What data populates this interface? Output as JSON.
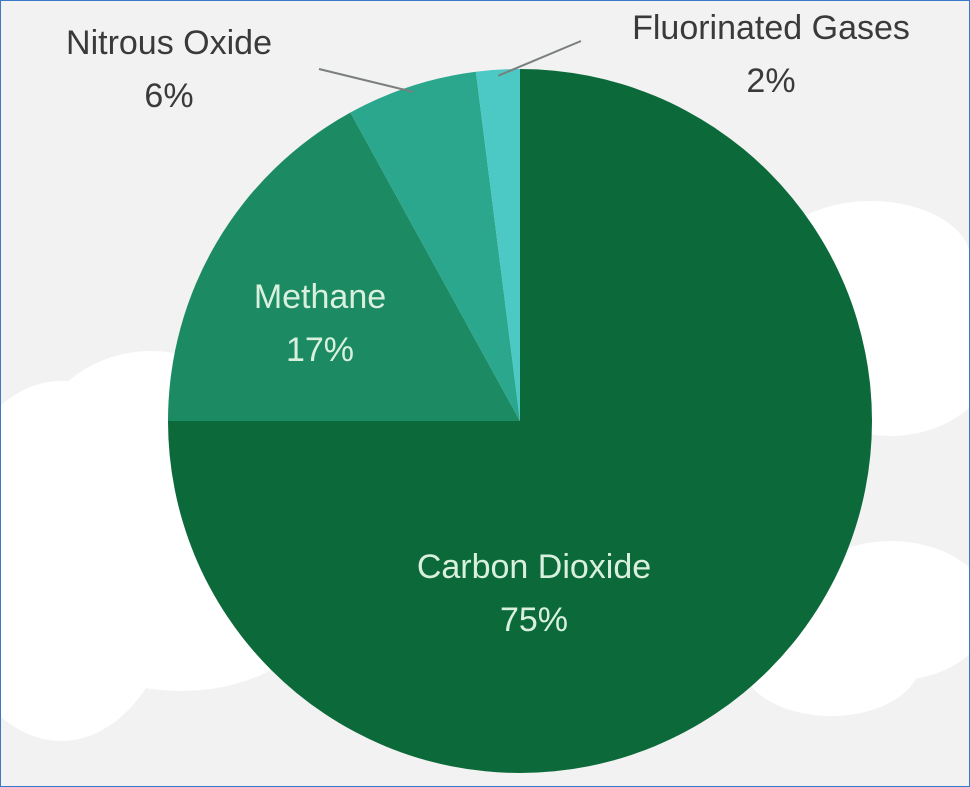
{
  "chart_data": {
    "type": "pie",
    "title": "",
    "start": "12 o'clock",
    "direction": "clockwise",
    "slices": [
      {
        "label": "Carbon Dioxide",
        "value": 75,
        "value_label": "75%",
        "color": "#0c6a3a",
        "label_color": "#d9f0df",
        "label_position": "inside"
      },
      {
        "label": "Methane",
        "value": 17,
        "value_label": "17%",
        "color": "#1c8a62",
        "label_color": "#d9f0df",
        "label_position": "inside"
      },
      {
        "label": "Nitrous Oxide",
        "value": 6,
        "value_label": "6%",
        "color": "#2ba78e",
        "label_color": "#3a3a3a",
        "label_position": "outside-left"
      },
      {
        "label": "Fluorinated Gases",
        "value": 2,
        "value_label": "2%",
        "color": "#4cc9c4",
        "label_color": "#3a3a3a",
        "label_position": "outside-right"
      }
    ],
    "background": {
      "color": "#f1f2f1",
      "cloud_color": "#ffffff"
    }
  }
}
